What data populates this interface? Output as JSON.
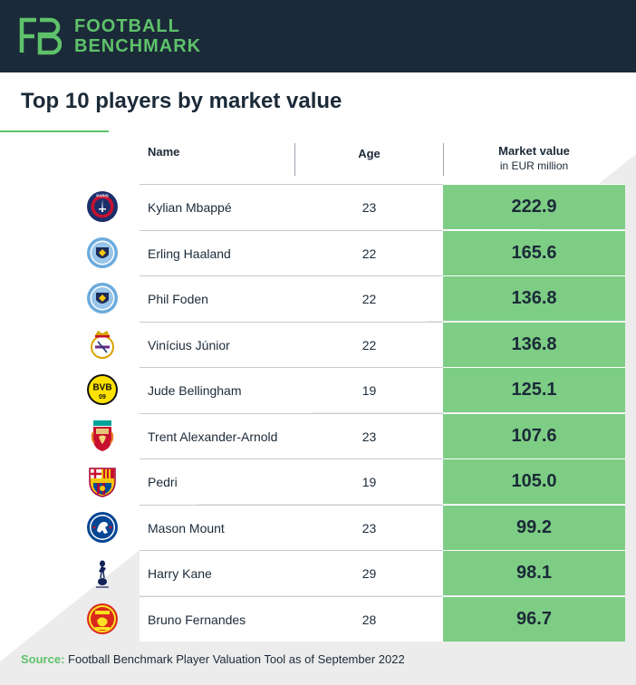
{
  "header": {
    "brand_line1": "FOOTBALL",
    "brand_line2": "BENCHMARK",
    "logo_text": "FB"
  },
  "colors": {
    "header_bg": "#1b2a38",
    "brand_green": "#5ec26a",
    "value_cell": "#7dcd84",
    "background_shade": "#ececec"
  },
  "chart_data": {
    "type": "table",
    "title": "Top 10 players by market value",
    "columns": {
      "name": "Name",
      "age": "Age",
      "market_value": "Market value",
      "market_value_unit": "in EUR million"
    },
    "rows": [
      {
        "name": "Kylian Mbappé",
        "age": "23",
        "market_value": "222.9",
        "crest": "psg-crest-icon"
      },
      {
        "name": "Erling Haaland",
        "age": "22",
        "market_value": "165.6",
        "crest": "manchester-city-crest-icon"
      },
      {
        "name": "Phil Foden",
        "age": "22",
        "market_value": "136.8",
        "crest": "manchester-city-crest-icon"
      },
      {
        "name": "Vinícius Júnior",
        "age": "22",
        "market_value": "136.8",
        "crest": "real-madrid-crest-icon"
      },
      {
        "name": "Jude Bellingham",
        "age": "19",
        "market_value": "125.1",
        "crest": "dortmund-crest-icon"
      },
      {
        "name": "Trent Alexander-Arnold",
        "age": "23",
        "market_value": "107.6",
        "crest": "liverpool-crest-icon"
      },
      {
        "name": "Pedri",
        "age": "19",
        "market_value": "105.0",
        "crest": "barcelona-crest-icon"
      },
      {
        "name": "Mason Mount",
        "age": "23",
        "market_value": "99.2",
        "crest": "chelsea-crest-icon"
      },
      {
        "name": "Harry Kane",
        "age": "29",
        "market_value": "98.1",
        "crest": "tottenham-crest-icon"
      },
      {
        "name": "Bruno Fernandes",
        "age": "28",
        "market_value": "96.7",
        "crest": "manchester-united-crest-icon"
      }
    ]
  },
  "source": {
    "label": "Source:",
    "text": "Football Benchmark Player Valuation Tool as of September 2022"
  }
}
